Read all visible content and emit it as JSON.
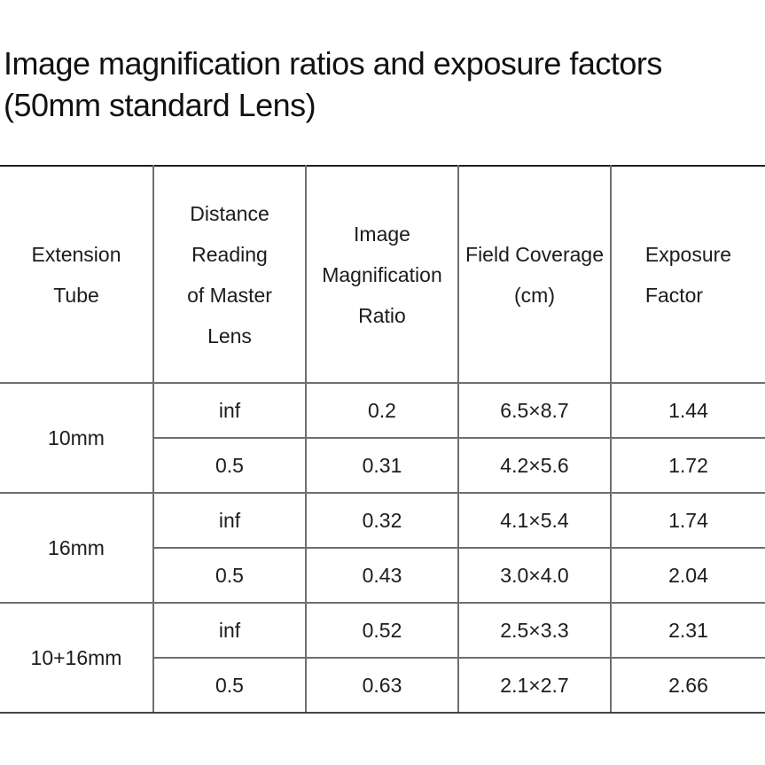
{
  "title": {
    "line1": "Image magnification ratios and exposure factors",
    "line2": "(50mm standard Lens)"
  },
  "colors": {
    "background": "#ffffff",
    "text": "#1a1a1a",
    "table_top_line": "#1f1f1f",
    "table_bottom_line": "#454545",
    "grid_line": "#6f6f6f"
  },
  "table": {
    "headers": [
      {
        "id": "extension-tube",
        "lines": [
          "Extension",
          "Tube"
        ]
      },
      {
        "id": "distance-reading-of-master-lens",
        "lines": [
          "Distance",
          "Reading",
          "of Master",
          "Lens"
        ]
      },
      {
        "id": "image-magnification-ratio",
        "lines": [
          "Image",
          "Magnification",
          "Ratio"
        ]
      },
      {
        "id": "field-coverage-cm",
        "lines": [
          "Field Coverage",
          "(cm)"
        ]
      },
      {
        "id": "exposure-factor",
        "lines": [
          "Exposure",
          "Factor"
        ]
      }
    ],
    "groups": [
      {
        "tube": "10mm",
        "rows": [
          {
            "distance": "inf",
            "magnification": "0.2",
            "field_coverage": "6.5×8.7",
            "exposure": "1.44"
          },
          {
            "distance": "0.5",
            "magnification": "0.31",
            "field_coverage": "4.2×5.6",
            "exposure": "1.72"
          }
        ]
      },
      {
        "tube": "16mm",
        "rows": [
          {
            "distance": "inf",
            "magnification": "0.32",
            "field_coverage": "4.1×5.4",
            "exposure": "1.74"
          },
          {
            "distance": "0.5",
            "magnification": "0.43",
            "field_coverage": "3.0×4.0",
            "exposure": "2.04"
          }
        ]
      },
      {
        "tube": "10+16mm",
        "rows": [
          {
            "distance": "inf",
            "magnification": "0.52",
            "field_coverage": "2.5×3.3",
            "exposure": "2.31"
          },
          {
            "distance": "0.5",
            "magnification": "0.63",
            "field_coverage": "2.1×2.7",
            "exposure": "2.66"
          }
        ]
      }
    ]
  }
}
